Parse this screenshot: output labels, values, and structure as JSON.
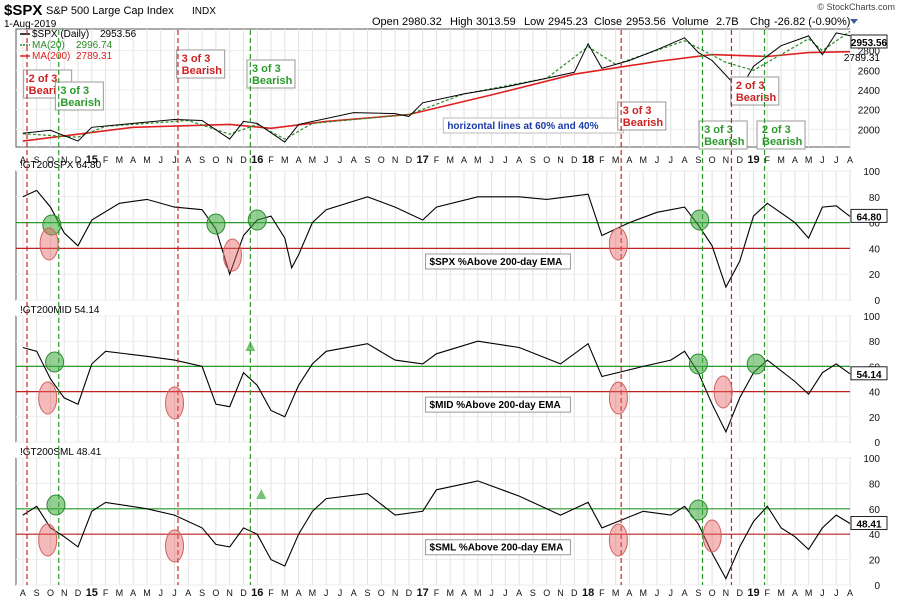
{
  "header": {
    "symbol": "$SPX",
    "name": "S&P 500 Large Cap Index",
    "exchange": "INDX",
    "date": "1-Aug-2019",
    "open_label": "Open",
    "open": "2980.32",
    "high_label": "High",
    "high": "3013.59",
    "low_label": "Low",
    "low": "2945.23",
    "close_label": "Close",
    "close": "2953.56",
    "volume_label": "Volume",
    "volume": "2.7B",
    "chg_label": "Chg",
    "chg": "-26.82 (-0.90%)",
    "brand": "© StockCharts.com"
  },
  "colors": {
    "price": "#000000",
    "ma20": "#2a8a2a",
    "ma200": "#e02020",
    "green_line": "#2a9a2a",
    "red_line": "#c02020",
    "signal_green": "#2a9a2a",
    "signal_red": "#cc2222"
  },
  "x_axis": {
    "labels": [
      "A",
      "S",
      "O",
      "N",
      "D",
      "15",
      "F",
      "M",
      "A",
      "M",
      "J",
      "J",
      "A",
      "S",
      "O",
      "N",
      "D",
      "16",
      "F",
      "M",
      "A",
      "M",
      "J",
      "J",
      "A",
      "S",
      "O",
      "N",
      "D",
      "17",
      "F",
      "M",
      "A",
      "M",
      "J",
      "J",
      "A",
      "S",
      "O",
      "N",
      "D",
      "18",
      "F",
      "M",
      "A",
      "M",
      "J",
      "J",
      "A",
      "S",
      "O",
      "N",
      "D",
      "19",
      "F",
      "M",
      "A",
      "M",
      "J",
      "J",
      "A"
    ],
    "bold": [
      "15",
      "16",
      "17",
      "18",
      "19"
    ]
  },
  "chart_data": [
    {
      "type": "line",
      "title": "$SPX (Daily) 2953.56",
      "legend": [
        {
          "name": "$SPX (Daily)",
          "value": "2953.56"
        },
        {
          "name": "MA(20)",
          "value": "2996.74"
        },
        {
          "name": "MA(200)",
          "value": "2789.31"
        }
      ],
      "ylim": [
        1820,
        3020
      ],
      "yticks": [
        2000,
        2200,
        2400,
        2600,
        2800
      ],
      "last_labels": [
        "2953.56",
        "2789.31"
      ],
      "series": [
        {
          "name": "$SPX (Daily)",
          "points": [
            [
              0,
              1960
            ],
            [
              2,
              1990
            ],
            [
              4,
              1880
            ],
            [
              5,
              2020
            ],
            [
              8,
              2060
            ],
            [
              11,
              2100
            ],
            [
              13,
              2090
            ],
            [
              15,
              1900
            ],
            [
              16,
              2080
            ],
            [
              17,
              2060
            ],
            [
              19,
              1870
            ],
            [
              20,
              2050
            ],
            [
              24,
              2170
            ],
            [
              27,
              2160
            ],
            [
              28,
              2130
            ],
            [
              29,
              2270
            ],
            [
              32,
              2360
            ],
            [
              35,
              2430
            ],
            [
              38,
              2520
            ],
            [
              40,
              2580
            ],
            [
              41,
              2870
            ],
            [
              42,
              2620
            ],
            [
              44,
              2700
            ],
            [
              46,
              2810
            ],
            [
              48,
              2930
            ],
            [
              49,
              2780
            ],
            [
              50,
              2700
            ],
            [
              52,
              2400
            ],
            [
              53,
              2640
            ],
            [
              55,
              2850
            ],
            [
              57,
              2950
            ],
            [
              58,
              2760
            ],
            [
              59,
              2980
            ],
            [
              60,
              2953
            ]
          ]
        },
        {
          "name": "MA(20)",
          "points": [
            [
              0,
              1955
            ],
            [
              4,
              1920
            ],
            [
              6,
              2030
            ],
            [
              12,
              2090
            ],
            [
              15,
              1950
            ],
            [
              17,
              2050
            ],
            [
              19,
              1900
            ],
            [
              21,
              2060
            ],
            [
              28,
              2150
            ],
            [
              32,
              2360
            ],
            [
              38,
              2520
            ],
            [
              41,
              2840
            ],
            [
              43,
              2660
            ],
            [
              48,
              2900
            ],
            [
              51,
              2680
            ],
            [
              53,
              2600
            ],
            [
              57,
              2920
            ],
            [
              58,
              2800
            ],
            [
              60,
              2996
            ]
          ]
        },
        {
          "name": "MA(200)",
          "points": [
            [
              0,
              1880
            ],
            [
              8,
              2020
            ],
            [
              15,
              2050
            ],
            [
              18,
              2010
            ],
            [
              22,
              2080
            ],
            [
              28,
              2150
            ],
            [
              34,
              2350
            ],
            [
              40,
              2560
            ],
            [
              46,
              2690
            ],
            [
              50,
              2760
            ],
            [
              54,
              2740
            ],
            [
              57,
              2780
            ],
            [
              60,
              2789
            ]
          ]
        }
      ],
      "annotations": {
        "note": "horizontal lines at 60% and 40%",
        "signals": [
          {
            "text": [
              "2 of 3",
              "Bearish"
            ],
            "color": "red"
          },
          {
            "text": [
              "3 of 3",
              "Bearish"
            ],
            "color": "green"
          },
          {
            "text": [
              "3 of 3",
              "Bearish"
            ],
            "color": "red"
          },
          {
            "text": [
              "3 of 3",
              "Bearish"
            ],
            "color": "green"
          },
          {
            "text": [
              "3 of 3",
              "Bearish"
            ],
            "color": "red"
          },
          {
            "text": [
              "3 of 3",
              "Bearish"
            ],
            "color": "green"
          },
          {
            "text": [
              "2 of 3",
              "Bearish"
            ],
            "color": "red"
          },
          {
            "text": [
              "2 of 3",
              "Bearish"
            ],
            "color": "green"
          }
        ]
      }
    },
    {
      "type": "line",
      "title": "!GT200SPX 64.80",
      "label": "$SPX %Above 200-day EMA",
      "ylim": [
        0,
        100
      ],
      "yticks": [
        0,
        20,
        40,
        60,
        80,
        100
      ],
      "hlines": [
        60,
        40
      ],
      "last_label": "64.80",
      "series": [
        {
          "name": "!GT200SPX",
          "points": [
            [
              0,
              80
            ],
            [
              1,
              85
            ],
            [
              2,
              72
            ],
            [
              3,
              52
            ],
            [
              4,
              42
            ],
            [
              5,
              62
            ],
            [
              7,
              75
            ],
            [
              9,
              78
            ],
            [
              11,
              72
            ],
            [
              13,
              70
            ],
            [
              14,
              55
            ],
            [
              15,
              20
            ],
            [
              16,
              50
            ],
            [
              17,
              62
            ],
            [
              18,
              65
            ],
            [
              19,
              48
            ],
            [
              19.5,
              25
            ],
            [
              20,
              35
            ],
            [
              21,
              60
            ],
            [
              22,
              70
            ],
            [
              25,
              80
            ],
            [
              27,
              72
            ],
            [
              29,
              62
            ],
            [
              30,
              72
            ],
            [
              33,
              80
            ],
            [
              36,
              80
            ],
            [
              38,
              78
            ],
            [
              41,
              82
            ],
            [
              42,
              50
            ],
            [
              44,
              60
            ],
            [
              46,
              68
            ],
            [
              48,
              72
            ],
            [
              49,
              58
            ],
            [
              50,
              42
            ],
            [
              51,
              10
            ],
            [
              52,
              30
            ],
            [
              53,
              65
            ],
            [
              54,
              75
            ],
            [
              56,
              60
            ],
            [
              57,
              48
            ],
            [
              58,
              72
            ],
            [
              59,
              73
            ],
            [
              60,
              64.8
            ]
          ]
        }
      ]
    },
    {
      "type": "line",
      "title": "!GT200MID 54.14",
      "label": "$MID %Above 200-day EMA",
      "ylim": [
        0,
        100
      ],
      "yticks": [
        0,
        20,
        40,
        60,
        80,
        100
      ],
      "hlines": [
        60,
        40
      ],
      "last_label": "54.14",
      "series": [
        {
          "name": "!GT200MID",
          "points": [
            [
              0,
              75
            ],
            [
              1,
              72
            ],
            [
              2,
              50
            ],
            [
              3,
              35
            ],
            [
              4,
              30
            ],
            [
              5,
              62
            ],
            [
              6,
              72
            ],
            [
              9,
              68
            ],
            [
              11,
              65
            ],
            [
              13,
              60
            ],
            [
              14,
              30
            ],
            [
              15,
              28
            ],
            [
              16,
              55
            ],
            [
              17,
              45
            ],
            [
              18,
              25
            ],
            [
              19,
              20
            ],
            [
              20,
              45
            ],
            [
              21,
              62
            ],
            [
              22,
              72
            ],
            [
              25,
              78
            ],
            [
              27,
              65
            ],
            [
              29,
              62
            ],
            [
              30,
              70
            ],
            [
              33,
              80
            ],
            [
              36,
              75
            ],
            [
              39,
              62
            ],
            [
              41,
              78
            ],
            [
              42,
              52
            ],
            [
              45,
              60
            ],
            [
              47,
              65
            ],
            [
              48,
              72
            ],
            [
              49,
              55
            ],
            [
              50,
              30
            ],
            [
              51,
              8
            ],
            [
              52,
              35
            ],
            [
              53,
              55
            ],
            [
              54,
              65
            ],
            [
              56,
              48
            ],
            [
              57,
              38
            ],
            [
              58,
              55
            ],
            [
              59,
              62
            ],
            [
              60,
              54.14
            ]
          ]
        }
      ]
    },
    {
      "type": "line",
      "title": "!GT200SML 48.41",
      "label": "$SML %Above 200-day EMA",
      "ylim": [
        0,
        100
      ],
      "yticks": [
        0,
        20,
        40,
        60,
        80,
        100
      ],
      "hlines": [
        60,
        40
      ],
      "last_label": "48.41",
      "series": [
        {
          "name": "!GT200SML",
          "points": [
            [
              0,
              55
            ],
            [
              1,
              62
            ],
            [
              2,
              45
            ],
            [
              3,
              38
            ],
            [
              4,
              30
            ],
            [
              5,
              58
            ],
            [
              6,
              65
            ],
            [
              9,
              60
            ],
            [
              11,
              55
            ],
            [
              13,
              45
            ],
            [
              14,
              32
            ],
            [
              15,
              30
            ],
            [
              16,
              45
            ],
            [
              17,
              40
            ],
            [
              18,
              20
            ],
            [
              19,
              15
            ],
            [
              20,
              40
            ],
            [
              21,
              58
            ],
            [
              22,
              68
            ],
            [
              25,
              72
            ],
            [
              27,
              55
            ],
            [
              29,
              58
            ],
            [
              30,
              75
            ],
            [
              33,
              82
            ],
            [
              36,
              70
            ],
            [
              39,
              55
            ],
            [
              41,
              65
            ],
            [
              42,
              45
            ],
            [
              45,
              58
            ],
            [
              47,
              55
            ],
            [
              48,
              62
            ],
            [
              49,
              48
            ],
            [
              50,
              25
            ],
            [
              51,
              5
            ],
            [
              52,
              30
            ],
            [
              53,
              50
            ],
            [
              54,
              62
            ],
            [
              55,
              45
            ],
            [
              56,
              38
            ],
            [
              57,
              28
            ],
            [
              58,
              45
            ],
            [
              59,
              55
            ],
            [
              60,
              48.41
            ]
          ]
        }
      ]
    }
  ]
}
